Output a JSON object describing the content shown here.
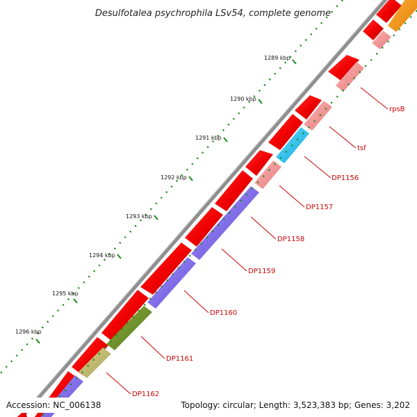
{
  "title": "Desulfotalea psychrophila LSv54, complete genome",
  "footer": {
    "accession": "Accession: NC_006138",
    "summary": "Topology: circular; Length: 3,523,383 bp; Genes: 3,202"
  },
  "colors": {
    "backbone": "#8f8f8f",
    "feature_red": "#f20000",
    "feature_pink": "#f28a8a",
    "feature_purple": "#7b68ee",
    "feature_cyan": "#1ec8f0",
    "feature_olive": "#6b8e23",
    "feature_khaki": "#bdb76b",
    "feature_orange": "#ff9900",
    "tick_green": "#1a8a1a",
    "label_red": "#cc0000"
  },
  "kbp_ticks": [
    "1289 kbp",
    "1290 kbp",
    "1291 kbp",
    "1292 kbp",
    "1293 kbp",
    "1294 kbp",
    "1295 kbp",
    "1296 kbp"
  ],
  "gene_labels": [
    "rpsB",
    "tsf",
    "DP1156",
    "DP1157",
    "DP1158",
    "DP1159",
    "DP1160",
    "DP1161",
    "DP1162"
  ]
}
